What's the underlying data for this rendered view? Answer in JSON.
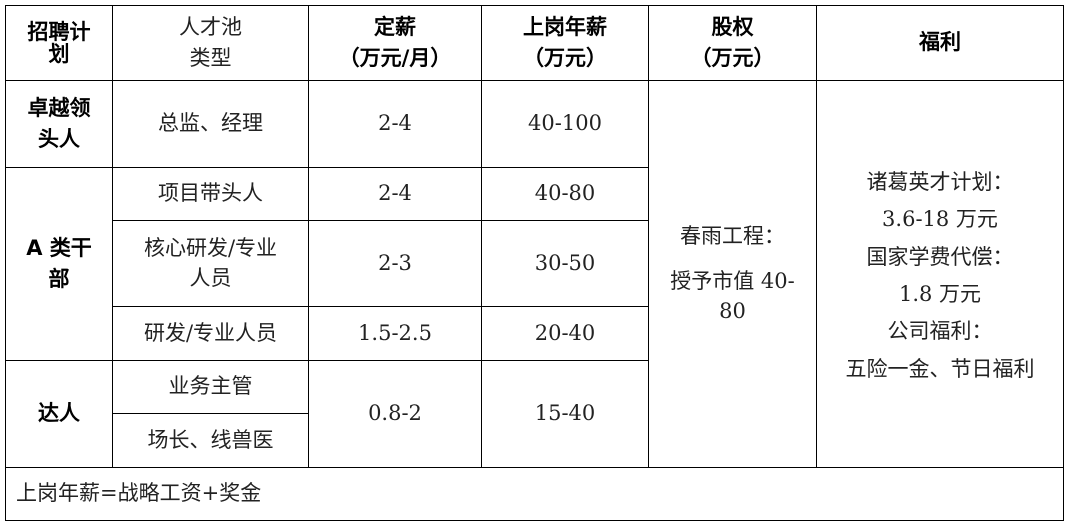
{
  "headers": {
    "plan": [
      "招聘计",
      "划"
    ],
    "pool": [
      "人才池",
      "类型"
    ],
    "salary": [
      "定薪",
      "（万元/月）"
    ],
    "annual": [
      "上岗年薪",
      "（万元）"
    ],
    "equity": [
      "股权",
      "（万元）"
    ],
    "benefits": "福利"
  },
  "groups": {
    "leader": [
      "卓越领",
      "头人"
    ],
    "cadre": [
      "A 类干",
      "部"
    ],
    "expert": "达人"
  },
  "rows": [
    {
      "pool": "总监、经理",
      "salary": "2-4",
      "annual": "40-100"
    },
    {
      "pool": "项目带头人",
      "salary": "2-4",
      "annual": "40-80"
    },
    {
      "pool": [
        "核心研发/专业",
        "人员"
      ],
      "salary": "2-3",
      "annual": "30-50"
    },
    {
      "pool": "研发/专业人员",
      "salary": "1.5-2.5",
      "annual": "20-40"
    },
    {
      "pool": "业务主管"
    },
    {
      "pool": "场长、线兽医"
    }
  ],
  "expert_salary": "0.8-2",
  "expert_annual": "15-40",
  "equity": [
    "春雨工程：",
    "授予市值 40-",
    "80"
  ],
  "benefits": [
    "诸葛英才计划：",
    "3.6-18 万元",
    "国家学费代偿：",
    "1.8 万元",
    "公司福利：",
    "五险一金、节日福利"
  ],
  "footer": "上岗年薪=战略工资+奖金"
}
